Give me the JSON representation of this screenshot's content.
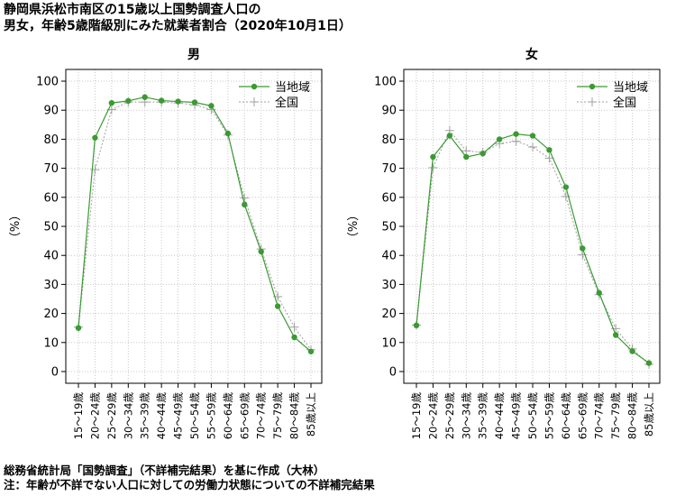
{
  "title_line1": "静岡県浜松市南区の15歳以上国勢調査人口の",
  "title_line2": "男女，年齢5歳階級別にみた就業者割合（2020年10月1日）",
  "footnote1": "総務省統計局「国勢調査」（不詳補完結果）を基に作成（大林）",
  "footnote2": "注：年齢が不詳でない人口に対しての労働力状態についての不詳補完結果",
  "colors": {
    "local": "#3a9a32",
    "national": "#a0a0a0",
    "grid": "#c8c8c8"
  },
  "chart_data": [
    {
      "type": "line",
      "title": "男",
      "ylabel": "（%）",
      "ylim": [
        0,
        100
      ],
      "yticks": [
        0,
        10,
        20,
        30,
        40,
        50,
        60,
        70,
        80,
        90,
        100
      ],
      "grid": true,
      "legend_position": "top-right",
      "categories": [
        "15～19歳",
        "20～24歳",
        "25～29歳",
        "30～34歳",
        "35～39歳",
        "40～44歳",
        "45～49歳",
        "50～54歳",
        "55～59歳",
        "60～64歳",
        "65～69歳",
        "70～74歳",
        "75～79歳",
        "80～84歳",
        "85歳以上"
      ],
      "series": [
        {
          "name": "当地域",
          "values": [
            15.0,
            80.5,
            92.5,
            93.2,
            94.5,
            93.3,
            93.0,
            92.7,
            91.5,
            82.0,
            57.5,
            41.3,
            22.5,
            11.8,
            6.9
          ]
        },
        {
          "name": "全国",
          "values": [
            15.3,
            69.5,
            90.2,
            92.8,
            92.8,
            92.8,
            92.5,
            91.8,
            90.2,
            81.5,
            59.8,
            42.2,
            25.8,
            15.3,
            7.5
          ]
        }
      ]
    },
    {
      "type": "line",
      "title": "女",
      "ylabel": "（%）",
      "ylim": [
        0,
        100
      ],
      "yticks": [
        0,
        10,
        20,
        30,
        40,
        50,
        60,
        70,
        80,
        90,
        100
      ],
      "grid": true,
      "legend_position": "top-right",
      "categories": [
        "15～19歳",
        "20～24歳",
        "25～29歳",
        "30～34歳",
        "35～39歳",
        "40～44歳",
        "45～49歳",
        "50～54歳",
        "55～59歳",
        "60～64歳",
        "65～69歳",
        "70～74歳",
        "75～79歳",
        "80～84歳",
        "85歳以上"
      ],
      "series": [
        {
          "name": "当地域",
          "values": [
            15.9,
            73.9,
            81.2,
            73.9,
            75.1,
            80.0,
            81.8,
            81.2,
            76.3,
            63.5,
            42.4,
            27.1,
            12.6,
            7.0,
            2.9
          ]
        },
        {
          "name": "全国",
          "values": [
            16.0,
            70.2,
            83.0,
            76.0,
            75.5,
            78.5,
            79.3,
            77.3,
            73.5,
            60.3,
            40.2,
            26.5,
            14.8,
            7.8,
            2.5
          ]
        }
      ]
    }
  ]
}
